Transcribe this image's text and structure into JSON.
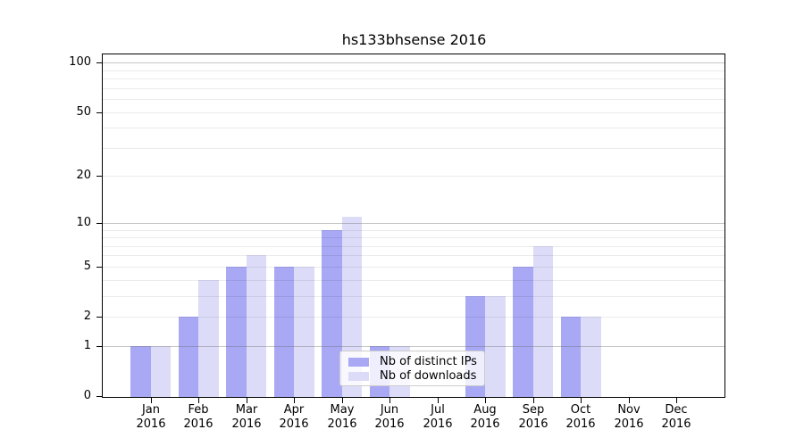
{
  "chart_data": {
    "type": "bar",
    "title": "hs133bhsense 2016",
    "categories": [
      "Jan",
      "Feb",
      "Mar",
      "Apr",
      "May",
      "Jun",
      "Jul",
      "Aug",
      "Sep",
      "Oct",
      "Nov",
      "Dec"
    ],
    "category_year": "2016",
    "series": [
      {
        "name": "Nb of distinct IPs",
        "color": "#a8a8f4",
        "values": [
          1,
          2,
          5,
          5,
          9,
          1,
          0,
          3,
          5,
          2,
          0,
          0
        ]
      },
      {
        "name": "Nb of downloads",
        "color": "#dcdcf8",
        "values": [
          1,
          4,
          6,
          5,
          11,
          1,
          0,
          3,
          7,
          2,
          0,
          0
        ]
      }
    ],
    "yscale": "log1p",
    "ylim": [
      0,
      113
    ],
    "yticks": [
      100,
      50,
      20,
      10,
      5,
      2,
      1,
      0
    ],
    "ytick_labels": [
      "100",
      "50",
      "20",
      "10",
      "5",
      "2",
      "1",
      "0"
    ],
    "major_gridlines": [
      1,
      10,
      100
    ],
    "minor_gridlines": [
      2,
      3,
      4,
      5,
      6,
      7,
      8,
      9,
      20,
      30,
      40,
      50,
      60,
      70,
      80,
      90
    ],
    "grid": true,
    "legend_position": "lower-center",
    "colors": {
      "background": "#ffffff",
      "axis": "#000000",
      "major_grid": "#c7c7c7",
      "minor_grid": "#ebebeb",
      "legend_border": "#cccccc"
    }
  }
}
